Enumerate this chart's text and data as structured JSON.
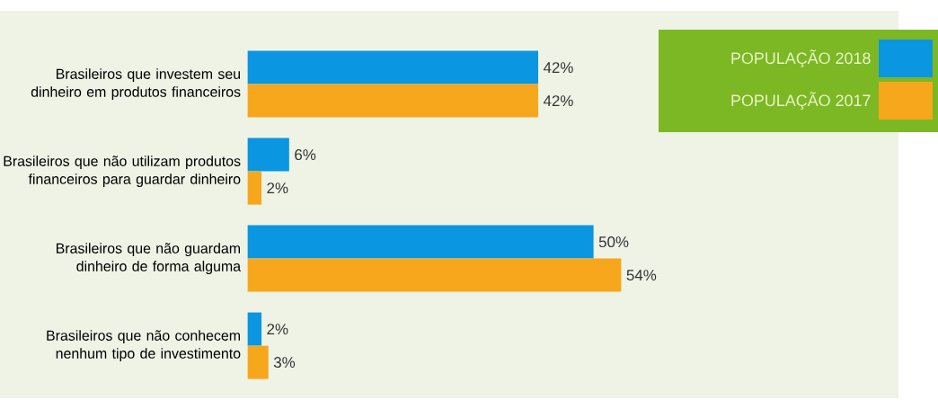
{
  "chart_data": {
    "type": "bar",
    "orientation": "horizontal",
    "legend": "top right",
    "categories": [
      "Brasileiros que investem seu dinheiro em produtos financeiros",
      "Brasileiros que não utilizam produtos financeiros para guardar dinheiro",
      "Brasileiros que não guardam dinheiro de forma alguma",
      "Brasileiros que não conhecem nenhum tipo de investimento"
    ],
    "series": [
      {
        "name": "POPULAÇÃO 2018",
        "color": "#0a96e0",
        "values": [
          42,
          6,
          50,
          2
        ],
        "value_labels": [
          "42%",
          "6%",
          "50%",
          "2%"
        ]
      },
      {
        "name": "POPULAÇÃO 2017",
        "color": "#f7a71c",
        "values": [
          42,
          2,
          54,
          3
        ],
        "value_labels": [
          "42%",
          "2%",
          "54%",
          "3%"
        ]
      }
    ]
  }
}
